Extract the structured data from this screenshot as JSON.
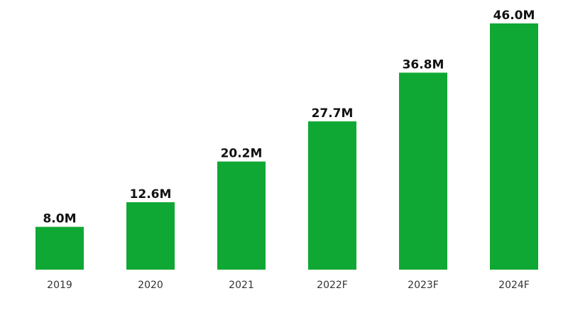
{
  "colors": {
    "bar": "#10A834",
    "value_text": "#111111",
    "category_text": "#333333",
    "background": "#ffffff"
  },
  "chart_data": {
    "type": "bar",
    "categories": [
      "2019",
      "2020",
      "2021",
      "2022F",
      "2023F",
      "2024F"
    ],
    "values": [
      8.0,
      12.6,
      20.2,
      27.7,
      36.8,
      46.0
    ],
    "value_labels": [
      "8.0M",
      "12.6M",
      "20.2M",
      "27.7M",
      "36.8M",
      "46.0M"
    ],
    "title": "",
    "xlabel": "",
    "ylabel": "",
    "ylim": [
      0,
      46.0
    ],
    "grid": false,
    "legend": "none"
  }
}
